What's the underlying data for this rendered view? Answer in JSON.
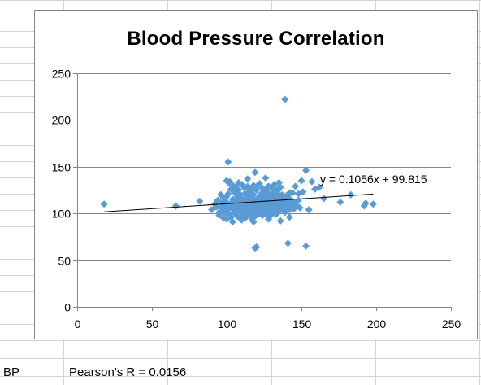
{
  "sheet": {
    "row_cells": [
      "BP",
      "Pearson's R = 0.0156"
    ]
  },
  "chart_data": {
    "type": "scatter",
    "title": "Blood Pressure Correlation",
    "xlabel": "",
    "ylabel": "",
    "xlim": [
      0,
      250
    ],
    "ylim": [
      0,
      250
    ],
    "x_ticks": [
      0,
      50,
      100,
      150,
      200,
      250
    ],
    "y_ticks": [
      0,
      50,
      100,
      150,
      200,
      250
    ],
    "grid": "horizontal",
    "legend": "none",
    "marker_color": "#5B9BD5",
    "trendline": {
      "label": "y = 0.1056x + 99.815",
      "slope": 0.1056,
      "intercept": 99.815,
      "x_range": [
        18,
        198
      ]
    },
    "points": [
      [
        18,
        110
      ],
      [
        66,
        108
      ],
      [
        82,
        113
      ],
      [
        90,
        104
      ],
      [
        92,
        110
      ],
      [
        93,
        107
      ],
      [
        94,
        114
      ],
      [
        95,
        101
      ],
      [
        95,
        98
      ],
      [
        96,
        106
      ],
      [
        96,
        120
      ],
      [
        97,
        111
      ],
      [
        97,
        103
      ],
      [
        98,
        116
      ],
      [
        98,
        105
      ],
      [
        99,
        100
      ],
      [
        99,
        108
      ],
      [
        100,
        94
      ],
      [
        100,
        112
      ],
      [
        100,
        118
      ],
      [
        101,
        104
      ],
      [
        101,
        121
      ],
      [
        102,
        107
      ],
      [
        102,
        99
      ],
      [
        102,
        134
      ],
      [
        103,
        111
      ],
      [
        103,
        96
      ],
      [
        103,
        126
      ],
      [
        104,
        105
      ],
      [
        104,
        115
      ],
      [
        104,
        91
      ],
      [
        105,
        109
      ],
      [
        105,
        101
      ],
      [
        105,
        123
      ],
      [
        106,
        112
      ],
      [
        106,
        104
      ],
      [
        107,
        118
      ],
      [
        107,
        97
      ],
      [
        107,
        108
      ],
      [
        108,
        114
      ],
      [
        108,
        102
      ],
      [
        108,
        125
      ],
      [
        109,
        106
      ],
      [
        109,
        120
      ],
      [
        109,
        95
      ],
      [
        110,
        110
      ],
      [
        110,
        103
      ],
      [
        110,
        116
      ],
      [
        111,
        99
      ],
      [
        111,
        112
      ],
      [
        111,
        106
      ],
      [
        112,
        121
      ],
      [
        112,
        107
      ],
      [
        112,
        101
      ],
      [
        113,
        115
      ],
      [
        113,
        109
      ],
      [
        113,
        96
      ],
      [
        114,
        118
      ],
      [
        114,
        104
      ],
      [
        114,
        111
      ],
      [
        115,
        102
      ],
      [
        115,
        123
      ],
      [
        115,
        108
      ],
      [
        116,
        113
      ],
      [
        116,
        99
      ],
      [
        116,
        105
      ],
      [
        117,
        117
      ],
      [
        117,
        110
      ],
      [
        117,
        94
      ],
      [
        118,
        106
      ],
      [
        118,
        120
      ],
      [
        118,
        101
      ],
      [
        119,
        112
      ],
      [
        119,
        108
      ],
      [
        119,
        97
      ],
      [
        120,
        115
      ],
      [
        120,
        103
      ],
      [
        120,
        125
      ],
      [
        121,
        110
      ],
      [
        121,
        99
      ],
      [
        121,
        106
      ],
      [
        122,
        118
      ],
      [
        122,
        104
      ],
      [
        122,
        113
      ],
      [
        123,
        101
      ],
      [
        123,
        110
      ],
      [
        123,
        121
      ],
      [
        124,
        107
      ],
      [
        124,
        115
      ],
      [
        124,
        98
      ],
      [
        125,
        112
      ],
      [
        125,
        104
      ],
      [
        125,
        119
      ],
      [
        126,
        108
      ],
      [
        126,
        100
      ],
      [
        126,
        116
      ],
      [
        127,
        111
      ],
      [
        127,
        105
      ],
      [
        127,
        123
      ],
      [
        128,
        113
      ],
      [
        128,
        102
      ],
      [
        128,
        109
      ],
      [
        129,
        118
      ],
      [
        129,
        107
      ],
      [
        129,
        97
      ],
      [
        130,
        110
      ],
      [
        130,
        104
      ],
      [
        130,
        120
      ],
      [
        131,
        114
      ],
      [
        131,
        101
      ],
      [
        131,
        108
      ],
      [
        132,
        106
      ],
      [
        132,
        117
      ],
      [
        132,
        124
      ],
      [
        133,
        111
      ],
      [
        133,
        103
      ],
      [
        133,
        99
      ],
      [
        134,
        115
      ],
      [
        134,
        108
      ],
      [
        134,
        121
      ],
      [
        135,
        105
      ],
      [
        135,
        112
      ],
      [
        135,
        102
      ],
      [
        136,
        118
      ],
      [
        136,
        109
      ],
      [
        136,
        115
      ],
      [
        137,
        106
      ],
      [
        137,
        120
      ],
      [
        137,
        111
      ],
      [
        138,
        104
      ],
      [
        138,
        113
      ],
      [
        138,
        108
      ],
      [
        139,
        117
      ],
      [
        139,
        110
      ],
      [
        139,
        101
      ],
      [
        140,
        115
      ],
      [
        140,
        106
      ],
      [
        140,
        119
      ],
      [
        141,
        109
      ],
      [
        141,
        112
      ],
      [
        142,
        104
      ],
      [
        142,
        116
      ],
      [
        143,
        110
      ],
      [
        143,
        107
      ],
      [
        144,
        113
      ],
      [
        145,
        105
      ],
      [
        146,
        110
      ],
      [
        147,
        108
      ],
      [
        148,
        114
      ],
      [
        149,
        106
      ],
      [
        100,
        135
      ],
      [
        102,
        132
      ],
      [
        104,
        130
      ],
      [
        106,
        128
      ],
      [
        108,
        133
      ],
      [
        110,
        131
      ],
      [
        112,
        127
      ],
      [
        114,
        129
      ],
      [
        116,
        126
      ],
      [
        118,
        130
      ],
      [
        120,
        128
      ],
      [
        122,
        132
      ],
      [
        124,
        127
      ],
      [
        126,
        125
      ],
      [
        128,
        129
      ],
      [
        130,
        127
      ],
      [
        132,
        131
      ],
      [
        134,
        126
      ],
      [
        136,
        128
      ],
      [
        106,
        122
      ],
      [
        116,
        124
      ],
      [
        124,
        122
      ],
      [
        134,
        124
      ],
      [
        142,
        122
      ],
      [
        104,
        91
      ],
      [
        110,
        93
      ],
      [
        118,
        91
      ],
      [
        128,
        94
      ],
      [
        136,
        92
      ],
      [
        142,
        96
      ],
      [
        101,
        155
      ],
      [
        108,
        132
      ],
      [
        114,
        137
      ],
      [
        119,
        144
      ],
      [
        126,
        138
      ],
      [
        135,
        133
      ],
      [
        139,
        222
      ],
      [
        141,
        68
      ],
      [
        144,
        122
      ],
      [
        146,
        129
      ],
      [
        148,
        121
      ],
      [
        150,
        135
      ],
      [
        151,
        123
      ],
      [
        153,
        146
      ],
      [
        153,
        65
      ],
      [
        155,
        104
      ],
      [
        157,
        134
      ],
      [
        159,
        126
      ],
      [
        162,
        128
      ],
      [
        165,
        116
      ],
      [
        176,
        112
      ],
      [
        183,
        120
      ],
      [
        192,
        108
      ],
      [
        193,
        111
      ],
      [
        198,
        110
      ],
      [
        120,
        64
      ],
      [
        119,
        63
      ],
      [
        93,
        107
      ],
      [
        96,
        103
      ],
      [
        98,
        95
      ]
    ]
  }
}
